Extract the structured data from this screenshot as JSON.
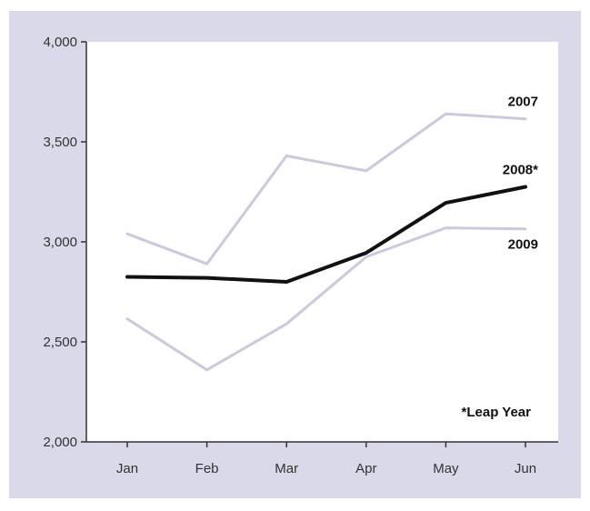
{
  "chart_data": {
    "type": "line",
    "categories": [
      "Jan",
      "Feb",
      "Mar",
      "Apr",
      "May",
      "Jun"
    ],
    "ylim": [
      2000,
      4000
    ],
    "yticks": [
      2000,
      2500,
      3000,
      3500,
      4000
    ],
    "ytick_labels": [
      "2,000",
      "2,500",
      "3,000",
      "3,500",
      "4,000"
    ],
    "grid": false,
    "series": [
      {
        "name": "2007",
        "values": [
          3040,
          2890,
          3430,
          3355,
          3640,
          3615
        ],
        "color": "#c9c9df"
      },
      {
        "name": "2008*",
        "values": [
          2825,
          2820,
          2800,
          2945,
          3195,
          3275
        ],
        "color": "#111111"
      },
      {
        "name": "2009",
        "values": [
          2615,
          2360,
          2590,
          2925,
          3070,
          3065
        ],
        "color": "#c9c9df"
      }
    ],
    "annotation": "*Leap Year"
  },
  "colors": {
    "frame_background": "#d9d9ea",
    "plot_background": "#ffffff",
    "axis": "#333333"
  }
}
